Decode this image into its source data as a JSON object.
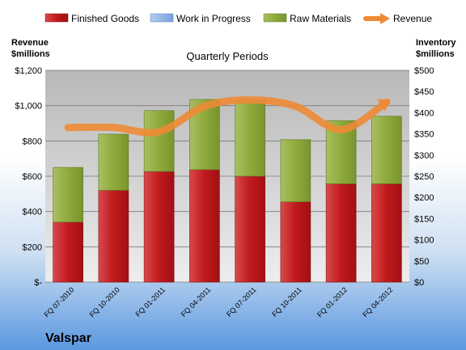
{
  "chart_data": {
    "type": "bar",
    "title": "Quarterly Periods",
    "brand": "Valspar",
    "categories": [
      "FQ 07-2010",
      "FQ 10-2010",
      "FQ 01-2011",
      "FQ 04-2011",
      "FQ 07-2011",
      "FQ 10-2011",
      "FQ 01-2012",
      "FQ 04-2012"
    ],
    "series": [
      {
        "name": "Finished Goods",
        "axis": "left",
        "values": [
          340,
          520,
          627,
          637,
          600,
          455,
          557,
          557
        ],
        "color": "#c0191c"
      },
      {
        "name": "Work in Progress",
        "axis": "left",
        "values": [
          0,
          0,
          0,
          0,
          0,
          0,
          0,
          0
        ],
        "color": "#8fb2e6"
      },
      {
        "name": "Raw Materials",
        "axis": "left",
        "values": [
          310,
          318,
          345,
          398,
          433,
          352,
          358,
          383
        ],
        "color": "#8faa3c"
      },
      {
        "name": "Revenue",
        "axis": "right",
        "type": "line",
        "values": [
          365,
          365,
          355,
          415,
          430,
          415,
          360,
          425
        ],
        "color": "#ee8a35"
      }
    ],
    "ylabel_left": "Revenue\n$millions",
    "ylabel_right": "Inventory\n$millions",
    "ylim_left": [
      0,
      1200
    ],
    "ylim_right": [
      0,
      500
    ],
    "yticks_left": [
      "$-",
      "$200",
      "$400",
      "$600",
      "$800",
      "$1,000",
      "$1,200"
    ],
    "yticks_right": [
      "$0",
      "$50",
      "$100",
      "$150",
      "$200",
      "$250",
      "$300",
      "$350",
      "$400",
      "$450",
      "$500"
    ],
    "grid": true,
    "legend_position": "top"
  }
}
